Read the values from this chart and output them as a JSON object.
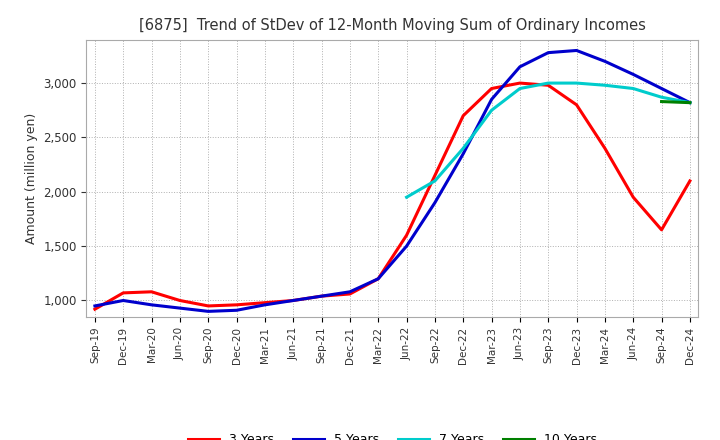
{
  "title": "[6875]  Trend of StDev of 12-Month Moving Sum of Ordinary Incomes",
  "ylabel": "Amount (million yen)",
  "background_color": "#ffffff",
  "grid_color": "#b0b0b0",
  "ylim": [
    850,
    3400
  ],
  "yticks": [
    1000,
    1500,
    2000,
    2500,
    3000
  ],
  "x_labels": [
    "Sep-19",
    "Dec-19",
    "Mar-20",
    "Jun-20",
    "Sep-20",
    "Dec-20",
    "Mar-21",
    "Jun-21",
    "Sep-21",
    "Dec-21",
    "Mar-22",
    "Jun-22",
    "Sep-22",
    "Dec-22",
    "Mar-23",
    "Jun-23",
    "Sep-23",
    "Dec-23",
    "Mar-24",
    "Jun-24",
    "Sep-24",
    "Dec-24"
  ],
  "series": {
    "3 Years": {
      "color": "#ff0000",
      "values": [
        920,
        1070,
        1080,
        1000,
        950,
        960,
        980,
        1000,
        1040,
        1060,
        1200,
        1600,
        2150,
        2700,
        2950,
        3000,
        2980,
        2800,
        2400,
        1950,
        1650,
        2100
      ]
    },
    "5 Years": {
      "color": "#0000cc",
      "values": [
        950,
        1000,
        960,
        930,
        900,
        910,
        960,
        1000,
        1040,
        1080,
        1200,
        1500,
        1900,
        2350,
        2850,
        3150,
        3280,
        3300,
        3200,
        3080,
        2950,
        2820
      ]
    },
    "7 Years": {
      "color": "#00cccc",
      "values": [
        null,
        null,
        null,
        null,
        null,
        null,
        null,
        null,
        null,
        null,
        null,
        1950,
        2100,
        2400,
        2750,
        2950,
        3000,
        3000,
        2980,
        2950,
        2870,
        2820
      ]
    },
    "10 Years": {
      "color": "#008000",
      "values": [
        null,
        null,
        null,
        null,
        null,
        null,
        null,
        null,
        null,
        null,
        null,
        null,
        null,
        null,
        null,
        null,
        null,
        null,
        null,
        null,
        2830,
        2820
      ]
    }
  }
}
